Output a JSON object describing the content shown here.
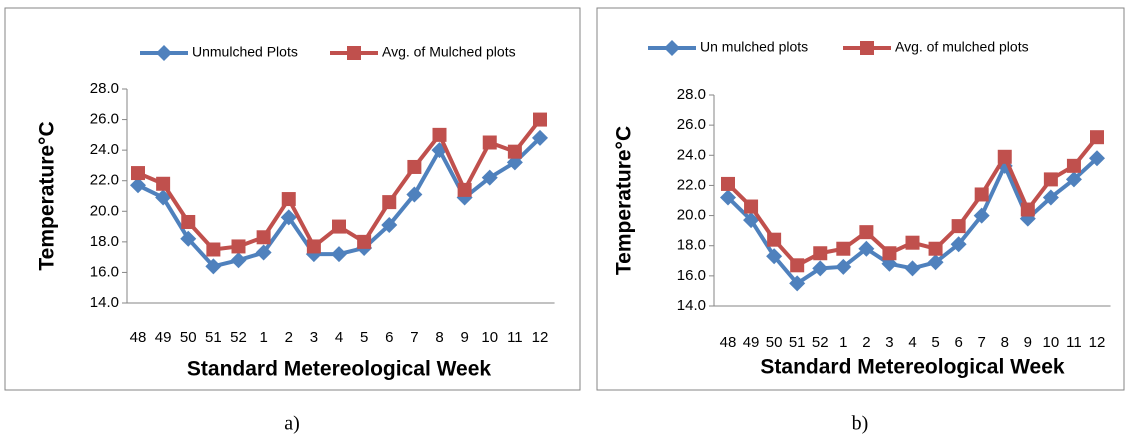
{
  "chart_data": [
    {
      "type": "line",
      "x_label": "Standard Metereological Week",
      "y_label": "Temperature°C",
      "caption": "a)",
      "categories": [
        "48",
        "49",
        "50",
        "51",
        "52",
        "1",
        "2",
        "3",
        "4",
        "5",
        "6",
        "7",
        "8",
        "9",
        "10",
        "11",
        "12"
      ],
      "series": [
        {
          "name": "Unmulched Plots",
          "color": "#4f81bd",
          "marker": "diamond",
          "values": [
            21.7,
            20.9,
            18.2,
            16.4,
            16.8,
            17.3,
            19.6,
            17.2,
            17.2,
            17.6,
            19.1,
            21.1,
            24.0,
            20.9,
            22.2,
            23.2,
            24.8
          ]
        },
        {
          "name": "Avg. of Mulched plots",
          "color": "#c0504d",
          "marker": "square",
          "values": [
            22.5,
            21.8,
            19.3,
            17.5,
            17.7,
            18.3,
            20.8,
            17.7,
            19.0,
            18.0,
            20.6,
            22.9,
            25.0,
            21.4,
            24.5,
            23.9,
            26.0
          ]
        }
      ],
      "ylim": [
        14,
        28
      ],
      "yticks": [
        {
          "value": 14,
          "label": "14.0"
        },
        {
          "value": 16,
          "label": "16.0"
        },
        {
          "value": 18,
          "label": "18.0"
        },
        {
          "value": 20,
          "label": "20.0"
        },
        {
          "value": 22,
          "label": "22.0"
        },
        {
          "value": 24,
          "label": "24.0"
        },
        {
          "value": 26,
          "label": "26.0"
        },
        {
          "value": 28,
          "label": "28.0"
        }
      ],
      "legend": "top"
    },
    {
      "type": "line",
      "x_label": "Standard Metereological Week",
      "y_label": "Temperature°C",
      "caption": "b)",
      "categories": [
        "48",
        "49",
        "50",
        "51",
        "52",
        "1",
        "2",
        "3",
        "4",
        "5",
        "6",
        "7",
        "8",
        "9",
        "10",
        "11",
        "12"
      ],
      "series": [
        {
          "name": "Un mulched plots",
          "color": "#4f81bd",
          "marker": "diamond",
          "values": [
            21.2,
            19.7,
            17.3,
            15.5,
            16.5,
            16.6,
            17.8,
            16.8,
            16.5,
            16.9,
            18.1,
            20.0,
            23.3,
            19.8,
            21.2,
            22.4,
            23.8
          ]
        },
        {
          "name": "Avg. of mulched plots",
          "color": "#c0504d",
          "marker": "square",
          "values": [
            22.1,
            20.6,
            18.4,
            16.7,
            17.5,
            17.8,
            18.9,
            17.5,
            18.2,
            17.8,
            19.3,
            21.4,
            23.9,
            20.4,
            22.4,
            23.3,
            25.2
          ]
        }
      ],
      "ylim": [
        14,
        28
      ],
      "yticks": [
        {
          "value": 14,
          "label": "14.0"
        },
        {
          "value": 16,
          "label": "16.0"
        },
        {
          "value": 18,
          "label": "18.0"
        },
        {
          "value": 20,
          "label": "20.0"
        },
        {
          "value": 22,
          "label": "22.0"
        },
        {
          "value": 24,
          "label": "24.0"
        },
        {
          "value": 26,
          "label": "26.0"
        },
        {
          "value": 28,
          "label": "28.0"
        }
      ],
      "legend": "top"
    }
  ]
}
